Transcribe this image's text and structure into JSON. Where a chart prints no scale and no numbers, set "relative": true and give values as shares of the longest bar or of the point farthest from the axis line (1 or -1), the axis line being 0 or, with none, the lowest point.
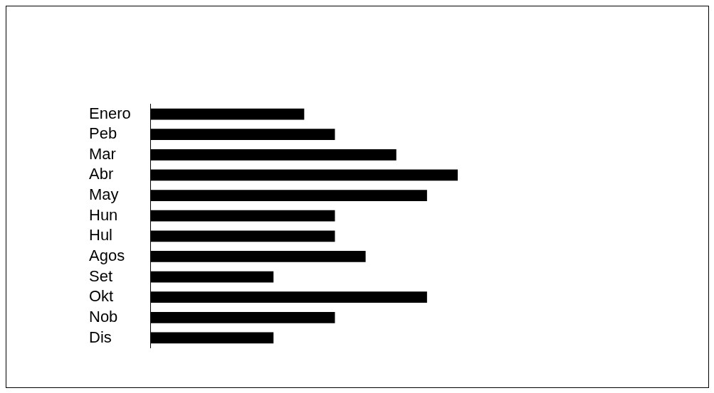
{
  "chart_data": {
    "type": "bar",
    "orientation": "horizontal",
    "relative": true,
    "categories": [
      "Enero",
      "Peb",
      "Mar",
      "Abr",
      "May",
      "Hun",
      "Hul",
      "Agos",
      "Set",
      "Okt",
      "Nob",
      "Dis"
    ],
    "values": [
      0.5,
      0.6,
      0.8,
      1,
      0.9,
      0.6,
      0.6,
      0.7,
      0.4,
      0.9,
      0.6,
      0.4
    ],
    "color": "#000000",
    "legend": false
  }
}
